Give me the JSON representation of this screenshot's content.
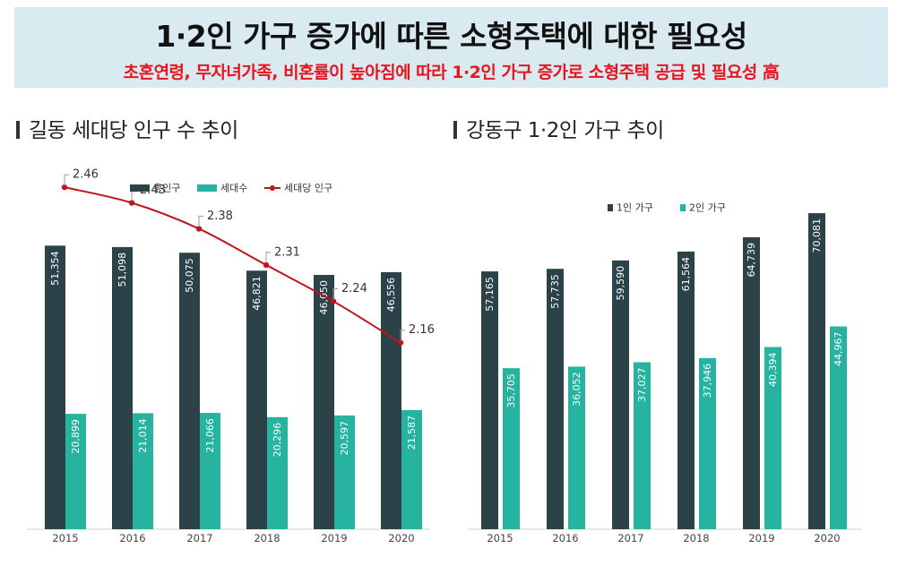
{
  "banner": {
    "title": "1·2인 가구 증가에 따른 소형주택에 대한 필요성",
    "subtitle": "초혼연령, 무자녀가족, 비혼률이 높아짐에 따라 1·2인 가구 증가로 소형주택 공급 및 필요성 高"
  },
  "colors": {
    "dark": "#2b4249",
    "teal": "#26b39f",
    "line": "#c0141b",
    "banner_bg": "#d9eaf1",
    "subtitle": "#e8141e"
  },
  "chart_data": [
    {
      "type": "bar+line",
      "title": "길동 세대당 인구 수 추이",
      "categories": [
        "2015",
        "2016",
        "2017",
        "2018",
        "2019",
        "2020"
      ],
      "series": [
        {
          "name": "총인구",
          "type": "bar",
          "color": "#2b4249",
          "values": [
            51354,
            51098,
            50075,
            46821,
            46050,
            46556
          ],
          "labels": [
            "51,354",
            "51,098",
            "50,075",
            "46,821",
            "46,050",
            "46,556"
          ]
        },
        {
          "name": "세대수",
          "type": "bar",
          "color": "#26b39f",
          "values": [
            20899,
            21014,
            21066,
            20296,
            20597,
            21587
          ],
          "labels": [
            "20,899",
            "21,014",
            "21,066",
            "20,296",
            "20,597",
            "21,587"
          ]
        },
        {
          "name": "세대당 인구",
          "type": "line",
          "color": "#c0141b",
          "values": [
            2.46,
            2.43,
            2.38,
            2.31,
            2.24,
            2.16
          ],
          "labels": [
            "2.46",
            "2.43",
            "2.38",
            "2.31",
            "2.24",
            "2.16"
          ]
        }
      ],
      "ylim": [
        0,
        60000
      ],
      "line_ylim": [
        1.8,
        2.5
      ],
      "legend": "top-left",
      "grid": false
    },
    {
      "type": "bar",
      "title": "강동구 1·2인 가구 추이",
      "categories": [
        "2015",
        "2016",
        "2017",
        "2018",
        "2019",
        "2020"
      ],
      "series": [
        {
          "name": "1인 가구",
          "type": "bar",
          "color": "#2b4249",
          "values": [
            57165,
            57735,
            59590,
            61564,
            64739,
            70081
          ],
          "labels": [
            "57,165",
            "57,735",
            "59,590",
            "61,564",
            "64,739",
            "70,081"
          ]
        },
        {
          "name": "2인 가구",
          "type": "bar",
          "color": "#26b39f",
          "values": [
            35705,
            36052,
            37027,
            37946,
            40394,
            44967
          ],
          "labels": [
            "35,705",
            "36,052",
            "37,027",
            "37,946",
            "40,394",
            "44,967"
          ]
        }
      ],
      "ylim": [
        0,
        82000
      ],
      "legend": "top-center",
      "grid": false
    }
  ]
}
